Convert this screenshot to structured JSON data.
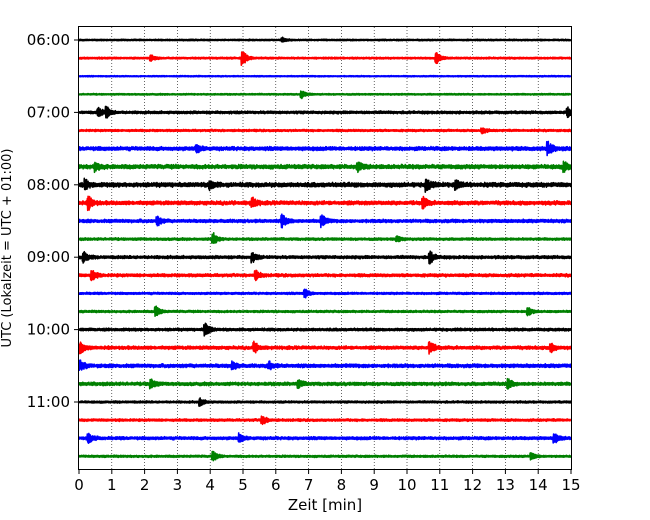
{
  "chart_data": {
    "type": "line",
    "subtype": "helicorder",
    "xlabel": "Zeit  [min]",
    "ylabel": "UTC (Lokalzeit = UTC + 01:00)",
    "xlim": [
      0,
      15
    ],
    "x_ticks": [
      0,
      1,
      2,
      3,
      4,
      5,
      6,
      7,
      8,
      9,
      10,
      11,
      12,
      13,
      14,
      15
    ],
    "x_tick_labels": [
      "0",
      "1",
      "2",
      "3",
      "4",
      "5",
      "6",
      "7",
      "8",
      "9",
      "10",
      "11",
      "12",
      "13",
      "14",
      "15"
    ],
    "grid": "vertical dotted at each minute",
    "y_tick_labels": [
      "06:00",
      "07:00",
      "08:00",
      "09:00",
      "10:00",
      "11:00"
    ],
    "trace_colors": [
      "#000000",
      "#ff0000",
      "#0000ff",
      "#008000"
    ],
    "traces": [
      {
        "start": "06:00",
        "color": "#000000",
        "activity": 0.5,
        "events": [
          [
            6.2,
            0.3
          ]
        ]
      },
      {
        "start": "06:15",
        "color": "#ff0000",
        "activity": 0.6,
        "events": [
          [
            2.2,
            0.4
          ],
          [
            5.0,
            1.0
          ],
          [
            10.9,
            0.8
          ]
        ]
      },
      {
        "start": "06:30",
        "color": "#0000ff",
        "activity": 0.4,
        "events": []
      },
      {
        "start": "06:45",
        "color": "#008000",
        "activity": 0.5,
        "events": [
          [
            6.8,
            0.5
          ]
        ]
      },
      {
        "start": "07:00",
        "color": "#000000",
        "activity": 0.9,
        "events": [
          [
            0.6,
            0.6
          ],
          [
            0.85,
            0.7
          ],
          [
            14.9,
            0.6
          ]
        ]
      },
      {
        "start": "07:15",
        "color": "#ff0000",
        "activity": 0.7,
        "events": [
          [
            12.3,
            0.4
          ]
        ]
      },
      {
        "start": "07:30",
        "color": "#0000ff",
        "activity": 1.3,
        "events": [
          [
            3.6,
            0.5
          ],
          [
            14.3,
            0.9
          ]
        ]
      },
      {
        "start": "07:45",
        "color": "#008000",
        "activity": 1.4,
        "events": [
          [
            0.5,
            0.6
          ],
          [
            8.5,
            0.6
          ],
          [
            14.8,
            0.6
          ]
        ]
      },
      {
        "start": "08:00",
        "color": "#000000",
        "activity": 1.5,
        "events": [
          [
            0.2,
            0.6
          ],
          [
            4.0,
            0.6
          ],
          [
            10.6,
            0.8
          ],
          [
            11.5,
            0.6
          ]
        ]
      },
      {
        "start": "08:15",
        "color": "#ff0000",
        "activity": 1.3,
        "events": [
          [
            0.3,
            0.9
          ],
          [
            5.3,
            0.6
          ],
          [
            10.5,
            0.7
          ]
        ]
      },
      {
        "start": "08:30",
        "color": "#0000ff",
        "activity": 1.1,
        "events": [
          [
            2.4,
            0.6
          ],
          [
            6.2,
            0.9
          ],
          [
            7.4,
            0.8
          ]
        ]
      },
      {
        "start": "08:45",
        "color": "#008000",
        "activity": 0.8,
        "events": [
          [
            4.1,
            0.8
          ],
          [
            9.7,
            0.4
          ]
        ]
      },
      {
        "start": "09:00",
        "color": "#000000",
        "activity": 1.0,
        "events": [
          [
            0.15,
            0.7
          ],
          [
            5.3,
            0.6
          ],
          [
            10.7,
            0.9
          ]
        ]
      },
      {
        "start": "09:15",
        "color": "#ff0000",
        "activity": 1.0,
        "events": [
          [
            0.4,
            0.7
          ],
          [
            5.4,
            0.6
          ]
        ]
      },
      {
        "start": "09:30",
        "color": "#0000ff",
        "activity": 0.7,
        "events": [
          [
            6.9,
            0.6
          ]
        ]
      },
      {
        "start": "09:45",
        "color": "#008000",
        "activity": 0.7,
        "events": [
          [
            2.35,
            0.7
          ],
          [
            13.7,
            0.6
          ]
        ]
      },
      {
        "start": "10:00",
        "color": "#000000",
        "activity": 0.9,
        "events": [
          [
            3.85,
            1.0
          ]
        ]
      },
      {
        "start": "10:15",
        "color": "#ff0000",
        "activity": 1.1,
        "events": [
          [
            0.05,
            0.8
          ],
          [
            5.35,
            0.7
          ],
          [
            10.7,
            0.9
          ],
          [
            14.4,
            0.6
          ]
        ]
      },
      {
        "start": "10:30",
        "color": "#0000ff",
        "activity": 1.2,
        "events": [
          [
            0.05,
            0.6
          ],
          [
            4.7,
            0.5
          ],
          [
            5.8,
            0.5
          ]
        ]
      },
      {
        "start": "10:45",
        "color": "#008000",
        "activity": 1.1,
        "events": [
          [
            2.2,
            0.6
          ],
          [
            6.7,
            0.5
          ],
          [
            13.1,
            0.6
          ]
        ]
      },
      {
        "start": "11:00",
        "color": "#000000",
        "activity": 0.7,
        "events": [
          [
            3.7,
            0.5
          ]
        ]
      },
      {
        "start": "11:15",
        "color": "#ff0000",
        "activity": 0.8,
        "events": [
          [
            5.6,
            0.6
          ]
        ]
      },
      {
        "start": "11:30",
        "color": "#0000ff",
        "activity": 1.0,
        "events": [
          [
            0.3,
            0.6
          ],
          [
            4.9,
            0.6
          ],
          [
            14.5,
            0.6
          ]
        ]
      },
      {
        "start": "11:45",
        "color": "#008000",
        "activity": 0.7,
        "events": [
          [
            4.1,
            0.6
          ],
          [
            13.8,
            0.5
          ]
        ]
      }
    ]
  }
}
